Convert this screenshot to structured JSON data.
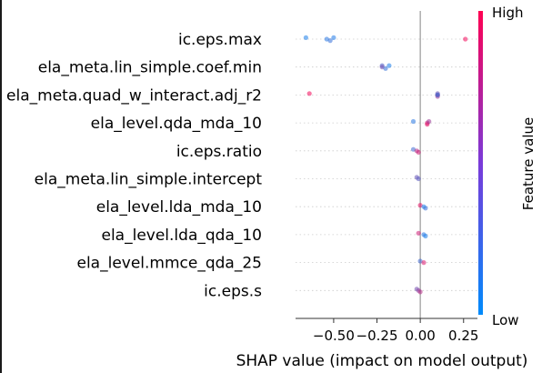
{
  "chart_data": {
    "type": "scatter",
    "subtype": "shap-beeswarm",
    "xlabel": "SHAP value (impact on model output)",
    "xlim": [
      -0.72,
      0.33
    ],
    "xticks": [
      -0.5,
      -0.25,
      0.0,
      0.25
    ],
    "xtick_labels": [
      "−0.50",
      "−0.25",
      "0.00",
      "0.25"
    ],
    "colorbar": {
      "label": "Feature value",
      "high_label": "High",
      "low_label": "Low",
      "low_color": "#008bfb",
      "high_color": "#ff0052"
    },
    "features": [
      {
        "name": "ic.eps.max",
        "points": [
          [
            -0.66,
            0.1
          ],
          [
            -0.54,
            0.15
          ],
          [
            -0.52,
            0.2
          ],
          [
            -0.5,
            0.12
          ],
          [
            0.26,
            0.95
          ]
        ]
      },
      {
        "name": "ela_meta.lin_simple.coef.min",
        "points": [
          [
            -0.22,
            0.3
          ],
          [
            -0.22,
            0.45
          ],
          [
            -0.2,
            0.2
          ],
          [
            -0.18,
            0.1
          ]
        ]
      },
      {
        "name": "ela_meta.quad_w_interact.adj_r2",
        "points": [
          [
            -0.64,
            0.95
          ],
          [
            0.1,
            0.7
          ],
          [
            0.1,
            0.6
          ],
          [
            0.1,
            0.4
          ],
          [
            0.1,
            0.2
          ]
        ]
      },
      {
        "name": "ela_level.qda_mda_10",
        "points": [
          [
            -0.04,
            0.15
          ],
          [
            0.04,
            0.8
          ],
          [
            0.04,
            0.9
          ],
          [
            0.05,
            0.6
          ]
        ]
      },
      {
        "name": "ic.eps.ratio",
        "points": [
          [
            -0.04,
            0.25
          ],
          [
            -0.02,
            0.7
          ],
          [
            -0.01,
            0.8
          ]
        ]
      },
      {
        "name": "ela_meta.lin_simple.intercept",
        "points": [
          [
            -0.02,
            0.4
          ],
          [
            -0.01,
            0.35
          ]
        ]
      },
      {
        "name": "ela_level.lda_mda_10",
        "points": [
          [
            0.0,
            0.9
          ],
          [
            0.02,
            0.1
          ],
          [
            0.03,
            0.2
          ]
        ]
      },
      {
        "name": "ela_level.lda_qda_10",
        "points": [
          [
            -0.01,
            0.8
          ],
          [
            0.02,
            0.15
          ],
          [
            0.03,
            0.1
          ]
        ]
      },
      {
        "name": "ela_level.mmce_qda_25",
        "points": [
          [
            0.0,
            0.25
          ],
          [
            0.02,
            0.85
          ]
        ]
      },
      {
        "name": "ic.eps.s",
        "points": [
          [
            -0.02,
            0.45
          ],
          [
            -0.01,
            0.55
          ],
          [
            0.0,
            0.7
          ]
        ]
      }
    ]
  }
}
